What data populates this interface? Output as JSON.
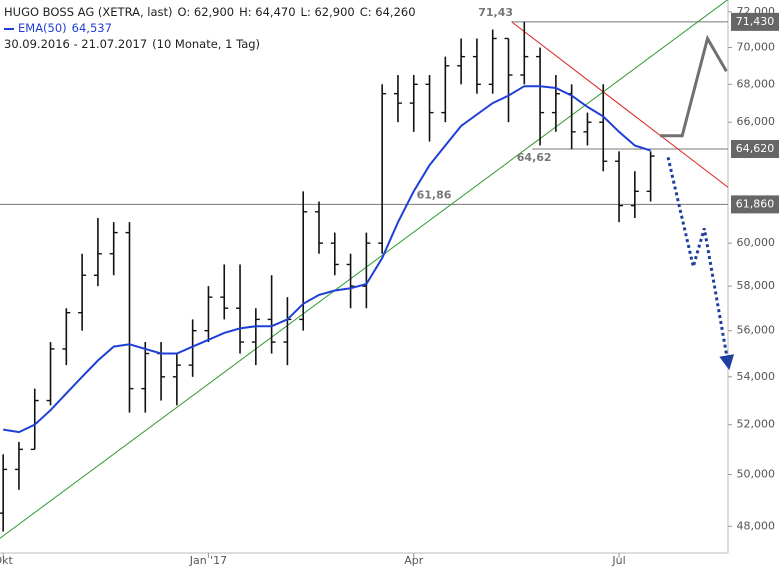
{
  "chart_data": {
    "type": "ohlc",
    "title": "HUGO BOSS AG (XETRA, last)",
    "header": {
      "open": "O: 62,900",
      "high": "H: 64,470",
      "low": "L: 62,900",
      "close": "C: 64,260",
      "range": "30.09.2016 - 21.07.2017",
      "period": "(10 Monate, 1 Tag)"
    },
    "x": [
      0,
      1,
      2,
      3,
      4,
      5,
      6,
      7,
      8,
      9,
      10,
      11,
      12,
      13,
      14,
      15,
      16,
      17,
      18,
      19,
      20,
      21,
      22,
      23,
      24,
      25,
      26,
      27,
      28,
      29,
      30,
      31,
      32,
      33,
      34,
      35,
      36,
      37,
      38,
      39,
      40,
      41
    ],
    "open": [
      48500,
      50200,
      51000,
      53000,
      55200,
      56800,
      58500,
      59500,
      60500,
      53500,
      55000,
      54000,
      54500,
      56000,
      57500,
      57000,
      55500,
      56500,
      55500,
      56500,
      61500,
      60000,
      59000,
      58000,
      60000,
      67500,
      67000,
      68000,
      66500,
      69000,
      69500,
      68000,
      70500,
      68500,
      69500,
      66500,
      67500,
      65500,
      66000,
      64000,
      61800,
      62500
    ],
    "high": [
      50800,
      51300,
      53500,
      55500,
      57000,
      59500,
      61200,
      61000,
      61000,
      55500,
      55500,
      55000,
      56500,
      58000,
      59000,
      59000,
      57000,
      58500,
      57500,
      62500,
      62000,
      60500,
      59500,
      60500,
      68000,
      68500,
      68500,
      68500,
      69500,
      70500,
      70500,
      71000,
      70500,
      71430,
      70000,
      68500,
      68000,
      66500,
      68000,
      64500,
      63500,
      64500
    ],
    "low": [
      47800,
      49400,
      51000,
      52800,
      54500,
      56000,
      58000,
      58500,
      52500,
      52500,
      53000,
      52800,
      54000,
      55500,
      56500,
      55000,
      54500,
      55000,
      54500,
      56000,
      59500,
      58500,
      57000,
      57000,
      59500,
      66000,
      65500,
      65000,
      66000,
      68000,
      67500,
      67500,
      66000,
      68000,
      64800,
      65500,
      64620,
      64800,
      63500,
      61000,
      61200,
      62000
    ],
    "close": [
      50200,
      51000,
      53000,
      55200,
      56800,
      58500,
      59500,
      60500,
      53500,
      55000,
      54000,
      54500,
      56000,
      57500,
      57000,
      55500,
      56500,
      55500,
      56500,
      61500,
      60000,
      59000,
      58000,
      60000,
      67500,
      67000,
      68000,
      66500,
      69000,
      69500,
      68000,
      70500,
      68500,
      69500,
      66500,
      67500,
      65500,
      66000,
      64000,
      61800,
      62500,
      64260
    ],
    "bar_color": "#111111",
    "series": [
      {
        "name": "EMA(50)",
        "value_label": "64,537",
        "color": "#1f3fd6",
        "values": [
          51800,
          51700,
          52000,
          52600,
          53300,
          54000,
          54700,
          55300,
          55400,
          55200,
          55000,
          55000,
          55300,
          55600,
          55900,
          56100,
          56200,
          56200,
          56500,
          57200,
          57600,
          57800,
          57900,
          58100,
          59300,
          61000,
          62500,
          63800,
          64800,
          65800,
          66400,
          67000,
          67400,
          67900,
          67900,
          67800,
          67400,
          66800,
          66300,
          65500,
          64800,
          64537
        ]
      }
    ],
    "xlim": [
      -0.2,
      45.9
    ],
    "ylim": [
      47000,
      72500
    ],
    "log_y": true,
    "xticks": [
      {
        "value": 0,
        "label": "Okt"
      },
      {
        "value": 13,
        "label": "Jan '17"
      },
      {
        "value": 26,
        "label": "Apr"
      },
      {
        "value": 39,
        "label": "Jul"
      }
    ],
    "yticks": [
      {
        "value": 48000,
        "label": "48,000"
      },
      {
        "value": 50000,
        "label": "50,000"
      },
      {
        "value": 52000,
        "label": "52,000"
      },
      {
        "value": 54000,
        "label": "54,000"
      },
      {
        "value": 56000,
        "label": "56,000"
      },
      {
        "value": 58000,
        "label": "58,000"
      },
      {
        "value": 60000,
        "label": "60,000"
      },
      {
        "value": 66000,
        "label": "66,000"
      },
      {
        "value": 68000,
        "label": "68,000"
      },
      {
        "value": 70000,
        "label": "70,000"
      },
      {
        "value": 72000,
        "label": "72,000"
      }
    ],
    "levels": [
      {
        "value": 71430,
        "label": "71,430",
        "note": "71,43",
        "from": 32.2
      },
      {
        "value": 64620,
        "label": "64,620",
        "note": "64,62",
        "from": 33.5
      },
      {
        "value": 61860,
        "label": "61,860",
        "note": "61,86",
        "from": -0.2
      }
    ],
    "trendlines": [
      {
        "color": "#2f9a2f",
        "x": [
          -0.2,
          45.9
        ],
        "y": [
          47550,
          72700
        ]
      },
      {
        "color": "#e02020",
        "x": [
          32.2,
          45.9
        ],
        "y": [
          71430,
          62700
        ]
      }
    ],
    "forecasts": [
      {
        "color": "#707070",
        "dotted": false,
        "x": [
          41.6,
          43.0,
          44.6,
          45.8
        ],
        "y": [
          65300,
          65300,
          70500,
          68700
        ]
      },
      {
        "color": "#1f3fa0",
        "dotted": true,
        "x": [
          42.1,
          43.7,
          44.4,
          45.9
        ],
        "y": [
          64200,
          58900,
          60700,
          54600
        ]
      }
    ]
  }
}
